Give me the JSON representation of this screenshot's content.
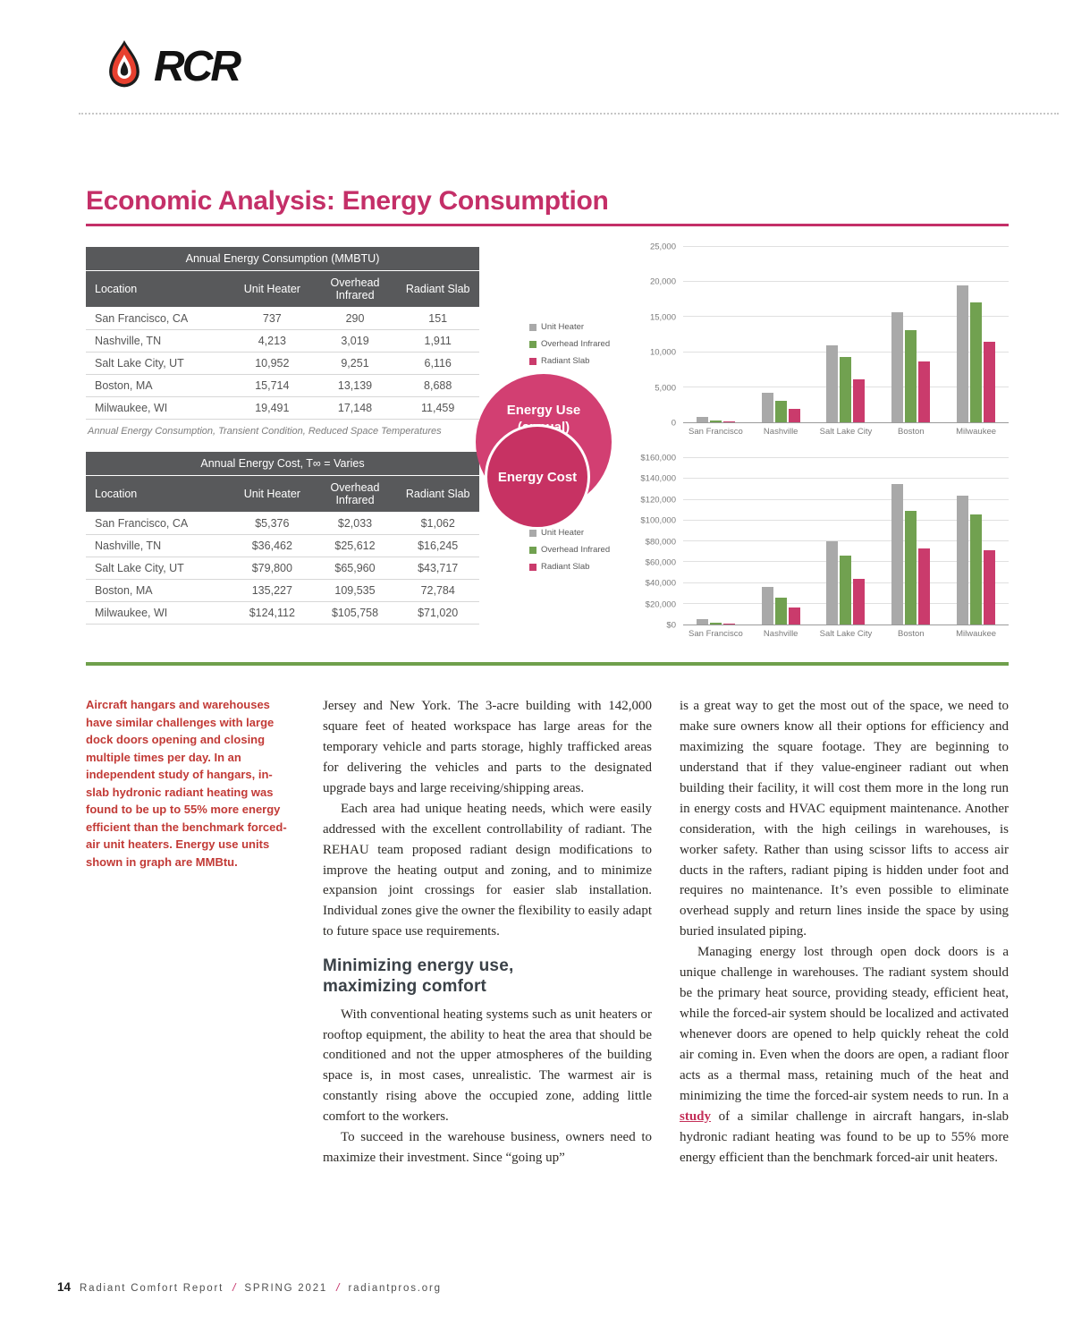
{
  "logo": {
    "text": "RCR"
  },
  "title": "Economic Analysis: Energy Consumption",
  "tables": {
    "consumption": {
      "title": "Annual Energy Consumption (MMBTU)",
      "columns": [
        "Location",
        "Unit Heater",
        "Overhead Infrared",
        "Radiant Slab"
      ],
      "rows": [
        [
          "San Francisco, CA",
          "737",
          "290",
          "151"
        ],
        [
          "Nashville, TN",
          "4,213",
          "3,019",
          "1,911"
        ],
        [
          "Salt Lake City, UT",
          "10,952",
          "9,251",
          "6,116"
        ],
        [
          "Boston, MA",
          "15,714",
          "13,139",
          "8,688"
        ],
        [
          "Milwaukee, WI",
          "19,491",
          "17,148",
          "11,459"
        ]
      ],
      "caption": "Annual Energy Consumption, Transient Condition, Reduced Space Temperatures"
    },
    "cost": {
      "title": "Annual Energy Cost, T∞ = Varies",
      "columns": [
        "Location",
        "Unit Heater",
        "Overhead Infrared",
        "Radiant Slab"
      ],
      "rows": [
        [
          "San Francisco, CA",
          "$5,376",
          "$2,033",
          "$1,062"
        ],
        [
          "Nashville, TN",
          "$36,462",
          "$25,612",
          "$16,245"
        ],
        [
          "Salt Lake City, UT",
          "$79,800",
          "$65,960",
          "$43,717"
        ],
        [
          "Boston, MA",
          "135,227",
          "109,535",
          "72,784"
        ],
        [
          "Milwaukee, WI",
          "$124,112",
          "$105,758",
          "$71,020"
        ]
      ]
    }
  },
  "badge": {
    "top": "Energy Use (annual)",
    "bottom": "Energy Cost"
  },
  "chart_data": [
    {
      "type": "bar",
      "title": "Energy Use (annual)",
      "categories": [
        "San Francisco",
        "Nashville",
        "Salt Lake City",
        "Boston",
        "Milwaukee"
      ],
      "series": [
        {
          "name": "Unit Heater",
          "color": "#a9a9a9",
          "values": [
            737,
            4213,
            10952,
            15714,
            19491
          ]
        },
        {
          "name": "Overhead Infrared",
          "color": "#71a150",
          "values": [
            290,
            3019,
            9251,
            13139,
            17148
          ]
        },
        {
          "name": "Radiant Slab",
          "color": "#ca3b6c",
          "values": [
            151,
            1911,
            6116,
            8688,
            11459
          ]
        }
      ],
      "ylabel": "MMBTU",
      "ymax": 25000,
      "yticks": [
        {
          "value": 0,
          "label": "0"
        },
        {
          "value": 5000,
          "label": "5,000"
        },
        {
          "value": 10000,
          "label": "10,000"
        },
        {
          "value": 15000,
          "label": "15,000"
        },
        {
          "value": 20000,
          "label": "20,000"
        },
        {
          "value": 25000,
          "label": "25,000"
        }
      ],
      "legend_position": "left",
      "grid": true
    },
    {
      "type": "bar",
      "title": "Energy Cost",
      "categories": [
        "San Francisco",
        "Nashville",
        "Salt Lake City",
        "Boston",
        "Milwaukee"
      ],
      "series": [
        {
          "name": "Unit Heater",
          "color": "#a9a9a9",
          "values": [
            5376,
            36462,
            79800,
            135227,
            124112
          ]
        },
        {
          "name": "Overhead Infrared",
          "color": "#71a150",
          "values": [
            2033,
            25612,
            65960,
            109535,
            105758
          ]
        },
        {
          "name": "Radiant Slab",
          "color": "#ca3b6c",
          "values": [
            1062,
            16245,
            43717,
            72784,
            71020
          ]
        }
      ],
      "ylabel": "USD",
      "ymax": 160000,
      "yticks": [
        {
          "value": 0,
          "label": "$0"
        },
        {
          "value": 20000,
          "label": "$20,000"
        },
        {
          "value": 40000,
          "label": "$40,000"
        },
        {
          "value": 60000,
          "label": "$60,000"
        },
        {
          "value": 80000,
          "label": "$80,000"
        },
        {
          "value": 100000,
          "label": "$100,000"
        },
        {
          "value": 120000,
          "label": "$120,000"
        },
        {
          "value": 140000,
          "label": "$140,000"
        },
        {
          "value": 160000,
          "label": "$160,000"
        }
      ],
      "legend_position": "left",
      "grid": true
    }
  ],
  "article": {
    "sidebar_note": "Aircraft hangars and warehouses have similar challenges with large dock doors opening and closing multiple times per day. In an independent study of hangars, in-slab hydronic radiant heating was found to be up to 55% more energy efficient than the benchmark forced-air unit heaters. Energy use units shown in graph are MMBtu.",
    "col2": {
      "p1": "Jersey and New York. The 3-acre building with 142,000 square feet of heated workspace has large areas for the temporary vehicle and parts storage, highly trafficked areas for delivering the vehicles and parts to the designated upgrade bays and large receiving/shipping areas.",
      "p2": "Each area had unique heating needs, which were easily addressed with the excellent controllability of radiant. The REHAU team proposed radiant design modifications to improve the heating output and zoning, and to minimize expansion joint crossings for easier slab installation. Individual zones give the owner the flexibility to easily adapt to future space use requirements.",
      "heading": "Minimizing energy use, maximizing comfort",
      "p3": "With conventional heating systems such as unit heaters or rooftop equipment, the ability to heat the area that should be conditioned and not the upper atmospheres of the building space is, in most cases, unrealistic. The warmest air is constantly rising above the occupied zone, adding little comfort to the workers.",
      "p4": "To succeed in the warehouse business, owners need to maximize their investment. Since “going up”"
    },
    "col3": {
      "p1": "is a great way to get the most out of the space, we need to make sure owners know all their options for efficiency and maximizing the square footage. They are beginning to understand that if they value-engineer radiant out when building their facility, it will cost them more in the long run in energy costs and HVAC equipment maintenance. Another consideration, with the high ceilings in warehouses, is worker safety. Rather than using scissor lifts to access air ducts in the rafters, radiant piping is hidden under foot and requires no maintenance. It’s even possible to eliminate overhead supply and return lines inside the space by using buried insulated piping.",
      "p2_pre": "Managing energy lost through open dock doors is a unique challenge in warehouses. The radiant system should be the primary heat source, providing steady, efficient heat, while the forced-air system should be localized and activated whenever doors are opened to help quickly reheat the cold air coming in. Even when the doors are open, a radiant floor acts as a thermal mass, retaining much of the heat and minimizing the time the forced-air system needs to run. In a ",
      "p2_link": "study",
      "p2_post": " of a similar challenge in aircraft hangars, in-slab hydronic radiant heating was found to be up to 55% more energy efficient than the benchmark forced-air unit heaters."
    }
  },
  "footer": {
    "page_number": "14",
    "publication": "Radiant Comfort Report",
    "separator": "/",
    "issue": "SPRING 2021",
    "site": "radiantpros.org"
  }
}
